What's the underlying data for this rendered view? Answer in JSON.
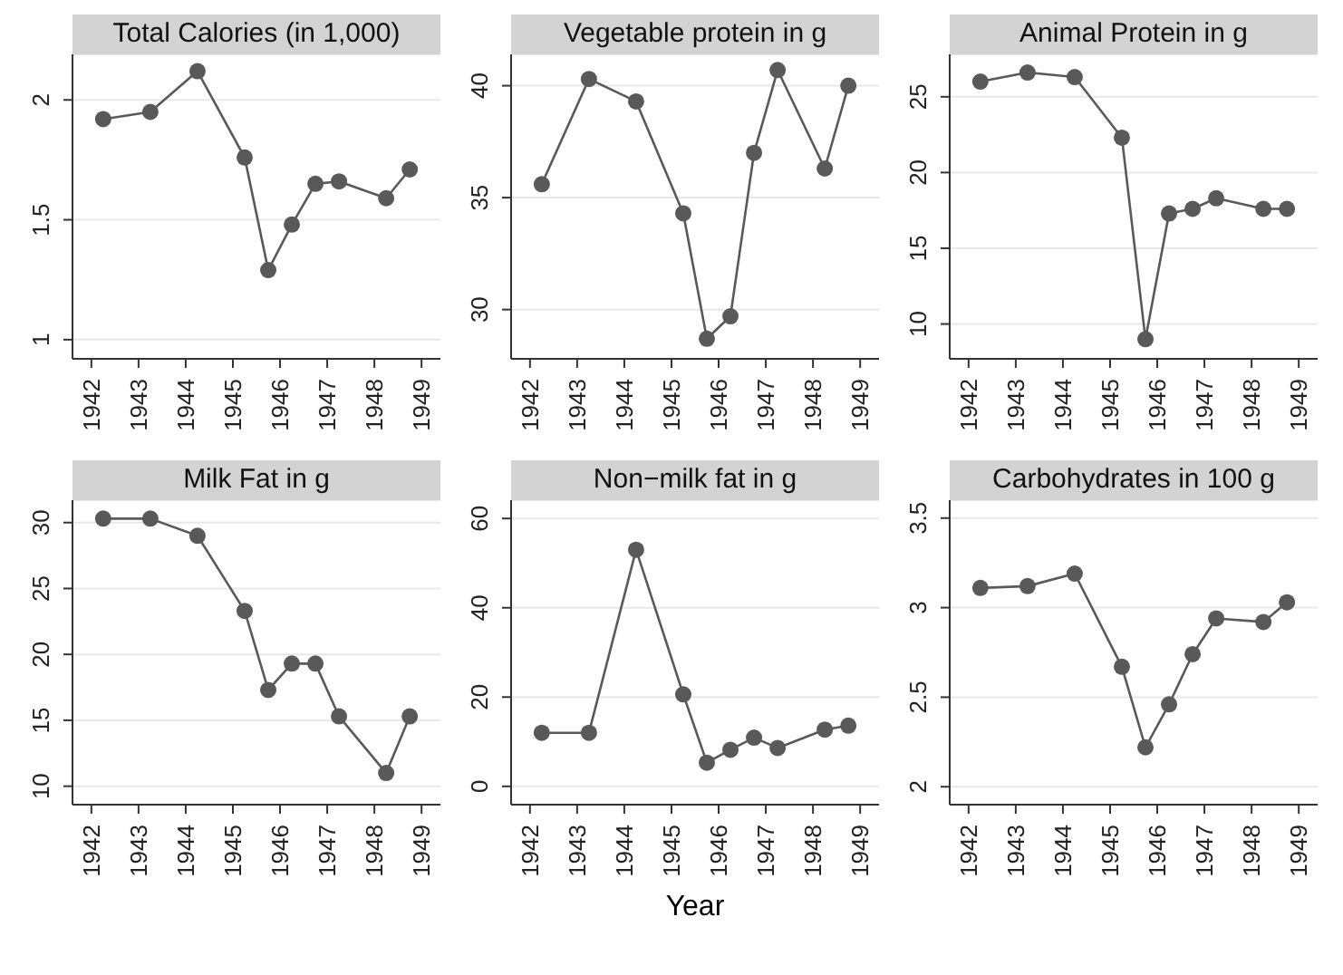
{
  "chart_data": [
    {
      "type": "line",
      "title": "Total Calories (in 1,000)",
      "x": [
        1942.25,
        1943.25,
        1944.25,
        1945.25,
        1945.75,
        1946.25,
        1946.75,
        1947.25,
        1948.25,
        1948.75
      ],
      "values": [
        1.92,
        1.95,
        2.12,
        1.76,
        1.29,
        1.48,
        1.65,
        1.66,
        1.59,
        1.71
      ],
      "color": "#595959",
      "xlim": [
        1941.6,
        1949.4
      ],
      "xticks": [
        1942,
        1943,
        1944,
        1945,
        1946,
        1947,
        1948,
        1949
      ],
      "ylim": [
        0.92,
        2.19
      ],
      "yticks": [
        1,
        1.5,
        2
      ],
      "grid": "y",
      "marker": "circle"
    },
    {
      "type": "line",
      "title": "Vegetable protein in g",
      "x": [
        1942.25,
        1943.25,
        1944.25,
        1945.25,
        1945.75,
        1946.25,
        1946.75,
        1947.25,
        1948.25,
        1948.75
      ],
      "values": [
        35.6,
        40.3,
        39.3,
        34.3,
        28.7,
        29.7,
        37.0,
        40.7,
        36.3,
        40.0
      ],
      "color": "#595959",
      "xlim": [
        1941.6,
        1949.4
      ],
      "xticks": [
        1942,
        1943,
        1944,
        1945,
        1946,
        1947,
        1948,
        1949
      ],
      "ylim": [
        27.8,
        41.4
      ],
      "yticks": [
        30,
        35,
        40
      ],
      "grid": "y",
      "marker": "circle"
    },
    {
      "type": "line",
      "title": "Animal Protein in g",
      "x": [
        1942.25,
        1943.25,
        1944.25,
        1945.25,
        1945.75,
        1946.25,
        1946.75,
        1947.25,
        1948.25,
        1948.75
      ],
      "values": [
        26.0,
        26.6,
        26.3,
        22.3,
        9.0,
        17.3,
        17.6,
        18.3,
        17.6,
        17.6
      ],
      "color": "#595959",
      "xlim": [
        1941.6,
        1949.4
      ],
      "xticks": [
        1942,
        1943,
        1944,
        1945,
        1946,
        1947,
        1948,
        1949
      ],
      "ylim": [
        7.7,
        27.8
      ],
      "yticks": [
        10,
        15,
        20,
        25
      ],
      "grid": "y",
      "marker": "circle"
    },
    {
      "type": "line",
      "title": "Milk Fat in g",
      "x": [
        1942.25,
        1943.25,
        1944.25,
        1945.25,
        1945.75,
        1946.25,
        1946.75,
        1947.25,
        1948.25,
        1948.75
      ],
      "values": [
        30.3,
        30.3,
        29.0,
        23.3,
        17.3,
        19.3,
        19.3,
        15.3,
        11.0,
        15.3
      ],
      "color": "#595959",
      "xlim": [
        1941.6,
        1949.4
      ],
      "xticks": [
        1942,
        1943,
        1944,
        1945,
        1946,
        1947,
        1948,
        1949
      ],
      "ylim": [
        8.6,
        31.7
      ],
      "yticks": [
        10,
        15,
        20,
        25,
        30
      ],
      "grid": "y",
      "marker": "circle"
    },
    {
      "type": "line",
      "title": "Non−milk fat in g",
      "xlabel": "Year",
      "x": [
        1942.25,
        1943.25,
        1944.25,
        1945.25,
        1945.75,
        1946.25,
        1946.75,
        1947.25,
        1948.25,
        1948.75
      ],
      "values": [
        12,
        12,
        53,
        20.6,
        5.3,
        8.2,
        10.9,
        8.6,
        12.7,
        13.6
      ],
      "color": "#595959",
      "xlim": [
        1941.6,
        1949.4
      ],
      "xticks": [
        1942,
        1943,
        1944,
        1945,
        1946,
        1947,
        1948,
        1949
      ],
      "ylim": [
        -4.1,
        64.1
      ],
      "yticks": [
        0,
        20,
        40,
        60
      ],
      "grid": "y",
      "marker": "circle"
    },
    {
      "type": "line",
      "title": "Carbohydrates in 100 g",
      "x": [
        1942.25,
        1943.25,
        1944.25,
        1945.25,
        1945.75,
        1946.25,
        1946.75,
        1947.25,
        1948.25,
        1948.75
      ],
      "values": [
        3.11,
        3.12,
        3.19,
        2.67,
        2.22,
        2.46,
        2.74,
        2.94,
        2.92,
        3.03
      ],
      "color": "#595959",
      "xlim": [
        1941.6,
        1949.4
      ],
      "xticks": [
        1942,
        1943,
        1944,
        1945,
        1946,
        1947,
        1948,
        1949
      ],
      "ylim": [
        1.9,
        3.6
      ],
      "yticks": [
        2,
        2.5,
        3,
        3.5
      ],
      "grid": "y",
      "marker": "circle"
    }
  ]
}
